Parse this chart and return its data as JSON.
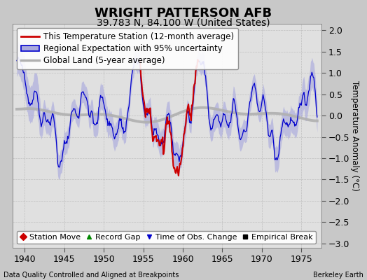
{
  "title": "WRIGHT PATTERSON AFB",
  "subtitle": "39.783 N, 84.100 W (United States)",
  "ylabel": "Temperature Anomaly (°C)",
  "xlabel_note": "Data Quality Controlled and Aligned at Breakpoints",
  "attribution": "Berkeley Earth",
  "xlim": [
    1938.5,
    1977.5
  ],
  "ylim": [
    -3.1,
    2.15
  ],
  "yticks": [
    -3,
    -2.5,
    -2,
    -1.5,
    -1,
    -0.5,
    0,
    0.5,
    1,
    1.5,
    2
  ],
  "xticks": [
    1940,
    1945,
    1950,
    1955,
    1960,
    1965,
    1970,
    1975
  ],
  "bg_color": "#c8c8c8",
  "plot_bg_color": "#e0e0e0",
  "blue_line_color": "#0000cc",
  "blue_fill_color": "#aaaadd",
  "red_line_color": "#cc0000",
  "gray_line_color": "#b0b0b0",
  "title_fontsize": 13,
  "subtitle_fontsize": 10,
  "legend_fontsize": 8.5,
  "tick_fontsize": 9,
  "axis_label_fontsize": 8.5,
  "red_start": 1954.5,
  "red_end": 1962.0
}
